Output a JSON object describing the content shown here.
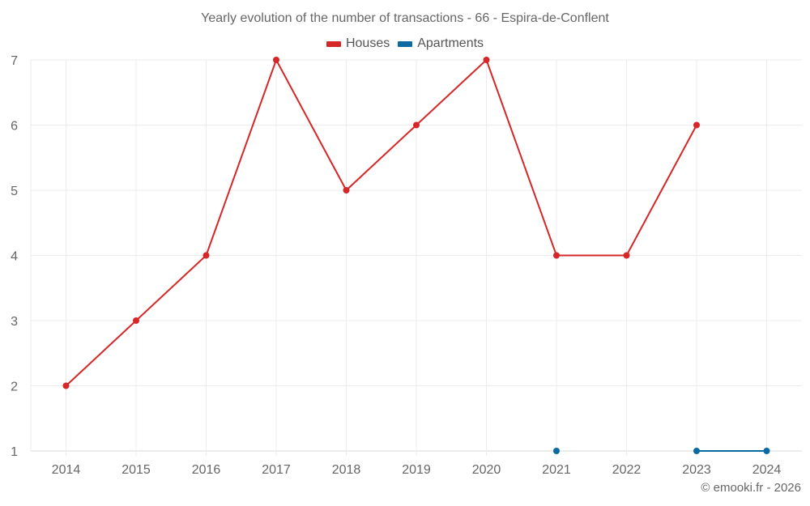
{
  "chart_data": {
    "type": "line",
    "title": "Yearly evolution of the number of transactions - 66 - Espira-de-Conflent",
    "xlabel": "",
    "ylabel": "",
    "categories": [
      "2014",
      "2015",
      "2016",
      "2017",
      "2018",
      "2019",
      "2020",
      "2021",
      "2022",
      "2023",
      "2024"
    ],
    "series": [
      {
        "name": "Houses",
        "color": "#d62728",
        "values": [
          2,
          3,
          4,
          7,
          5,
          6,
          7,
          4,
          4,
          6,
          null
        ]
      },
      {
        "name": "Apartments",
        "color": "#0a6aa1",
        "values": [
          null,
          null,
          null,
          null,
          null,
          null,
          null,
          1,
          null,
          1,
          1
        ]
      }
    ],
    "ylim": [
      1,
      7
    ],
    "yticks": [
      1,
      2,
      3,
      4,
      5,
      6,
      7
    ],
    "grid": true,
    "legend_position": "top"
  },
  "legend": {
    "items": [
      {
        "label": "Houses",
        "color": "#d62728"
      },
      {
        "label": "Apartments",
        "color": "#0a6aa1"
      }
    ]
  },
  "credit": "© emooki.fr - 2026"
}
